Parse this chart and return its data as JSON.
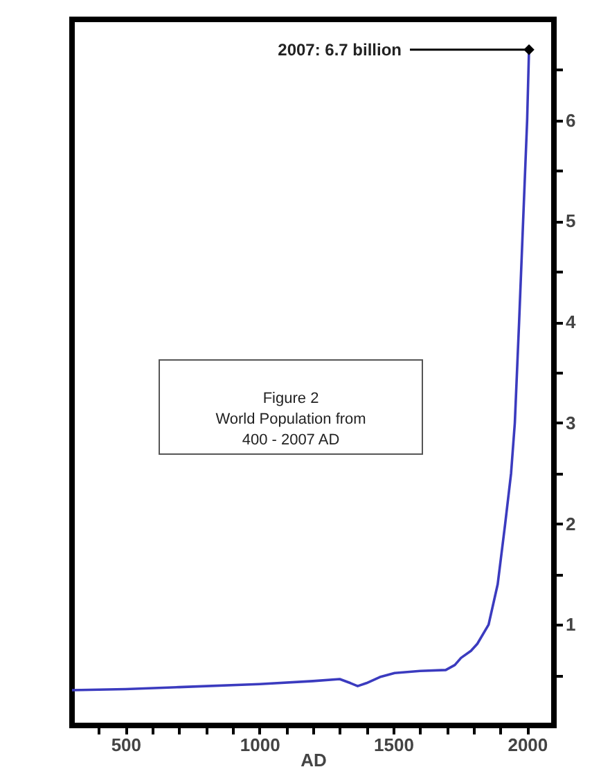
{
  "chart_data": {
    "type": "line",
    "xlabel": "AD",
    "x": [
      300,
      500,
      700,
      1000,
      1200,
      1300,
      1340,
      1367,
      1400,
      1450,
      1505,
      1600,
      1696,
      1730,
      1753,
      1790,
      1814,
      1856,
      1890,
      1918,
      1940,
      1954,
      1970,
      1985,
      2000,
      2007
    ],
    "series": [
      {
        "color": "#3b3bbf",
        "values": [
          0.35,
          0.36,
          0.38,
          0.41,
          0.44,
          0.46,
          0.42,
          0.39,
          0.42,
          0.48,
          0.52,
          0.54,
          0.55,
          0.6,
          0.67,
          0.74,
          0.81,
          1.0,
          1.4,
          2.0,
          2.5,
          3.0,
          4.0,
          5.0,
          6.0,
          6.7
        ]
      }
    ],
    "xlim": [
      300,
      2100
    ],
    "ylim": [
      0,
      7
    ],
    "xticks": [
      {
        "value": 400,
        "label": null
      },
      500,
      {
        "value": 600,
        "label": null
      },
      {
        "value": 700,
        "label": null
      },
      {
        "value": 800,
        "label": null
      },
      {
        "value": 900,
        "label": null
      },
      1000,
      {
        "value": 1100,
        "label": null
      },
      {
        "value": 1200,
        "label": null
      },
      {
        "value": 1300,
        "label": null
      },
      {
        "value": 1400,
        "label": null
      },
      1500,
      {
        "value": 1600,
        "label": null
      },
      {
        "value": 1700,
        "label": null
      },
      {
        "value": 1800,
        "label": null
      },
      {
        "value": 1900,
        "label": null
      },
      2000
    ],
    "yticks": [
      {
        "value": 0.5,
        "label": null
      },
      1,
      {
        "value": 1.5,
        "label": null
      },
      2,
      {
        "value": 2.5,
        "label": null
      },
      3,
      {
        "value": 3.5,
        "label": null
      },
      4,
      {
        "value": 4.5,
        "label": null
      },
      5,
      {
        "value": 5.5,
        "label": null
      },
      6,
      {
        "value": 6.5,
        "label": null
      }
    ],
    "annotations": [
      {
        "text": "2007:  6.7 billion",
        "x": 2007,
        "y": 6.7
      },
      "Figure 2\nWorld Population from\n400 - 2007 AD"
    ],
    "grid": false,
    "marker": "none",
    "line_style": "solid"
  }
}
